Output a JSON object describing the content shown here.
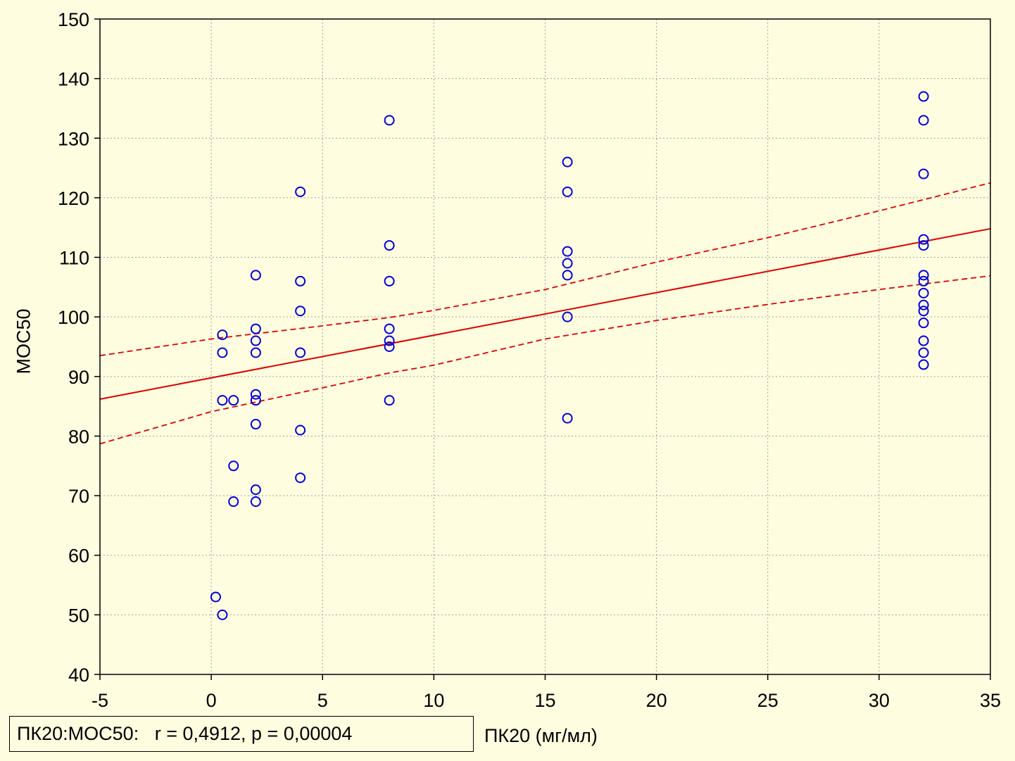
{
  "chart_data": {
    "type": "scatter",
    "xlabel": "ПК20 (мг/мл)",
    "ylabel": "МОС50",
    "xlim": [
      -5,
      35
    ],
    "ylim": [
      40,
      150
    ],
    "xticks": [
      "-5",
      "0",
      "5",
      "10",
      "15",
      "20",
      "25",
      "30",
      "35"
    ],
    "yticks": [
      "40",
      "50",
      "60",
      "70",
      "80",
      "90",
      "100",
      "110",
      "120",
      "130",
      "140",
      "150"
    ],
    "grid": true,
    "annotation": "ПК20:МОС50:   r = 0,4912, p = 0,00004",
    "points": [
      {
        "x": 0.2,
        "y": 53
      },
      {
        "x": 0.5,
        "y": 50
      },
      {
        "x": 0.5,
        "y": 97
      },
      {
        "x": 0.5,
        "y": 94
      },
      {
        "x": 0.5,
        "y": 86
      },
      {
        "x": 1,
        "y": 86
      },
      {
        "x": 1,
        "y": 75
      },
      {
        "x": 1,
        "y": 69
      },
      {
        "x": 2,
        "y": 107
      },
      {
        "x": 2,
        "y": 98
      },
      {
        "x": 2,
        "y": 96
      },
      {
        "x": 2,
        "y": 94
      },
      {
        "x": 2,
        "y": 87
      },
      {
        "x": 2,
        "y": 86
      },
      {
        "x": 2,
        "y": 82
      },
      {
        "x": 2,
        "y": 71
      },
      {
        "x": 2,
        "y": 69
      },
      {
        "x": 4,
        "y": 121
      },
      {
        "x": 4,
        "y": 106
      },
      {
        "x": 4,
        "y": 101
      },
      {
        "x": 4,
        "y": 94
      },
      {
        "x": 4,
        "y": 81
      },
      {
        "x": 4,
        "y": 73
      },
      {
        "x": 8,
        "y": 133
      },
      {
        "x": 8,
        "y": 112
      },
      {
        "x": 8,
        "y": 106
      },
      {
        "x": 8,
        "y": 98
      },
      {
        "x": 8,
        "y": 96
      },
      {
        "x": 8,
        "y": 95
      },
      {
        "x": 8,
        "y": 86
      },
      {
        "x": 16,
        "y": 126
      },
      {
        "x": 16,
        "y": 121
      },
      {
        "x": 16,
        "y": 111
      },
      {
        "x": 16,
        "y": 109
      },
      {
        "x": 16,
        "y": 107
      },
      {
        "x": 16,
        "y": 100
      },
      {
        "x": 16,
        "y": 83
      },
      {
        "x": 32,
        "y": 137
      },
      {
        "x": 32,
        "y": 133
      },
      {
        "x": 32,
        "y": 124
      },
      {
        "x": 32,
        "y": 113
      },
      {
        "x": 32,
        "y": 112
      },
      {
        "x": 32,
        "y": 107
      },
      {
        "x": 32,
        "y": 106
      },
      {
        "x": 32,
        "y": 104
      },
      {
        "x": 32,
        "y": 102
      },
      {
        "x": 32,
        "y": 101
      },
      {
        "x": 32,
        "y": 99
      },
      {
        "x": 32,
        "y": 96
      },
      {
        "x": 32,
        "y": 94
      },
      {
        "x": 32,
        "y": 92
      }
    ],
    "regression_line": {
      "x": [
        -5,
        35
      ],
      "y": [
        86.2,
        114.8
      ]
    },
    "confidence_upper": {
      "x": [
        -5,
        0,
        5,
        8,
        10,
        15,
        20,
        25,
        30,
        35
      ],
      "y": [
        93.5,
        96.3,
        98.5,
        99.9,
        101.1,
        104.6,
        109.2,
        113.3,
        117.8,
        122.5
      ]
    },
    "confidence_lower": {
      "x": [
        -5,
        0,
        5,
        8,
        10,
        15,
        20,
        25,
        30,
        35
      ],
      "y": [
        78.7,
        84.1,
        88.1,
        90.6,
        91.9,
        96.3,
        99.4,
        102.1,
        104.6,
        106.9
      ]
    },
    "colors": {
      "background": "#fffde0",
      "marker": "#0000dd",
      "line": "#dd0000",
      "grid": "#a0a0a0"
    }
  }
}
